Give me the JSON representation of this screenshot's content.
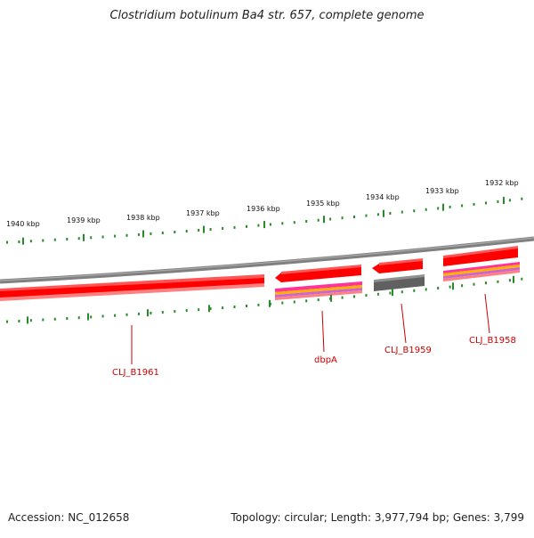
{
  "title": "Clostridium botulinum Ba4 str. 657, complete genome",
  "footer": {
    "accession": "Accession: NC_012658",
    "summary": "Topology: circular; Length: 3,977,794 bp; Genes: 3,799"
  },
  "ruler": {
    "ticks": [
      "1940 kbp",
      "1939 kbp",
      "1938 kbp",
      "1937 kbp",
      "1936 kbp",
      "1935 kbp",
      "1934 kbp",
      "1933 kbp",
      "1932 kbp"
    ]
  },
  "genes": [
    {
      "label": "CLJ_B1961"
    },
    {
      "label": "dbpA"
    },
    {
      "label": "CLJ_B1959"
    },
    {
      "label": "CLJ_B1958"
    }
  ],
  "colors": {
    "gene": "#ff0000",
    "gene_shadow": "#ff8080",
    "backbone": "#808080",
    "ticks": "#2a8a2a",
    "label": "#cc0000",
    "pseudo": "#606060",
    "stripes": [
      "#ff3399",
      "#ffb000",
      "#cc66cc"
    ]
  }
}
